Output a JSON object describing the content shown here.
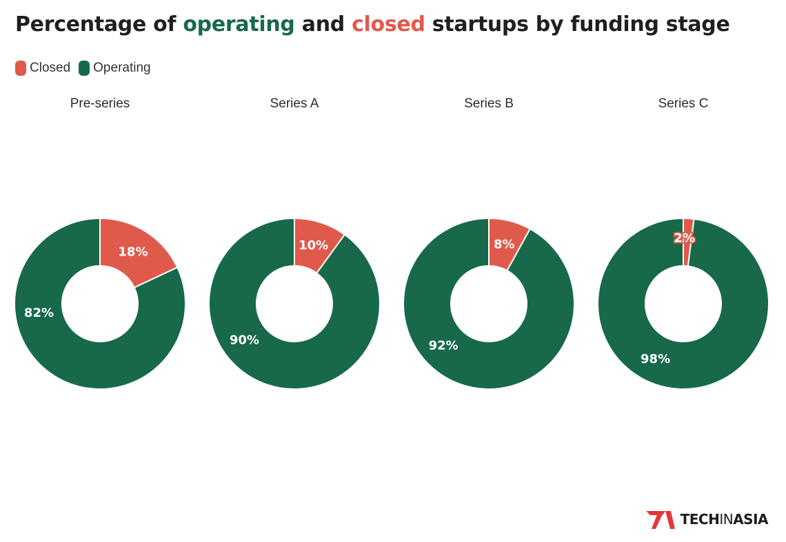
{
  "title": {
    "part1": "Percentage of ",
    "operating_word": "operating",
    "part2": " and ",
    "closed_word": "closed",
    "part3": " startups by funding stage"
  },
  "legend": {
    "closed_label": "Closed",
    "operating_label": "Operating"
  },
  "colors": {
    "closed": "#e05a4b",
    "operating": "#17694a"
  },
  "chart_data": {
    "type": "pie",
    "variant": "donut",
    "title": "Percentage of operating and closed startups by funding stage",
    "series_names": [
      "Closed",
      "Operating"
    ],
    "panels": [
      {
        "label": "Pre-series",
        "closed": 18,
        "operating": 82,
        "closed_label": "18%",
        "operating_label": "82%"
      },
      {
        "label": "Series A",
        "closed": 10,
        "operating": 90,
        "closed_label": "10%",
        "operating_label": "90%"
      },
      {
        "label": "Series B",
        "closed": 8,
        "operating": 92,
        "closed_label": "8%",
        "operating_label": "92%"
      },
      {
        "label": "Series C",
        "closed": 2,
        "operating": 98,
        "closed_label": "2%",
        "operating_label": "98%"
      }
    ]
  },
  "branding": {
    "logo_text_1": "TECH",
    "logo_text_2": "IN",
    "logo_text_3": "ASIA"
  }
}
